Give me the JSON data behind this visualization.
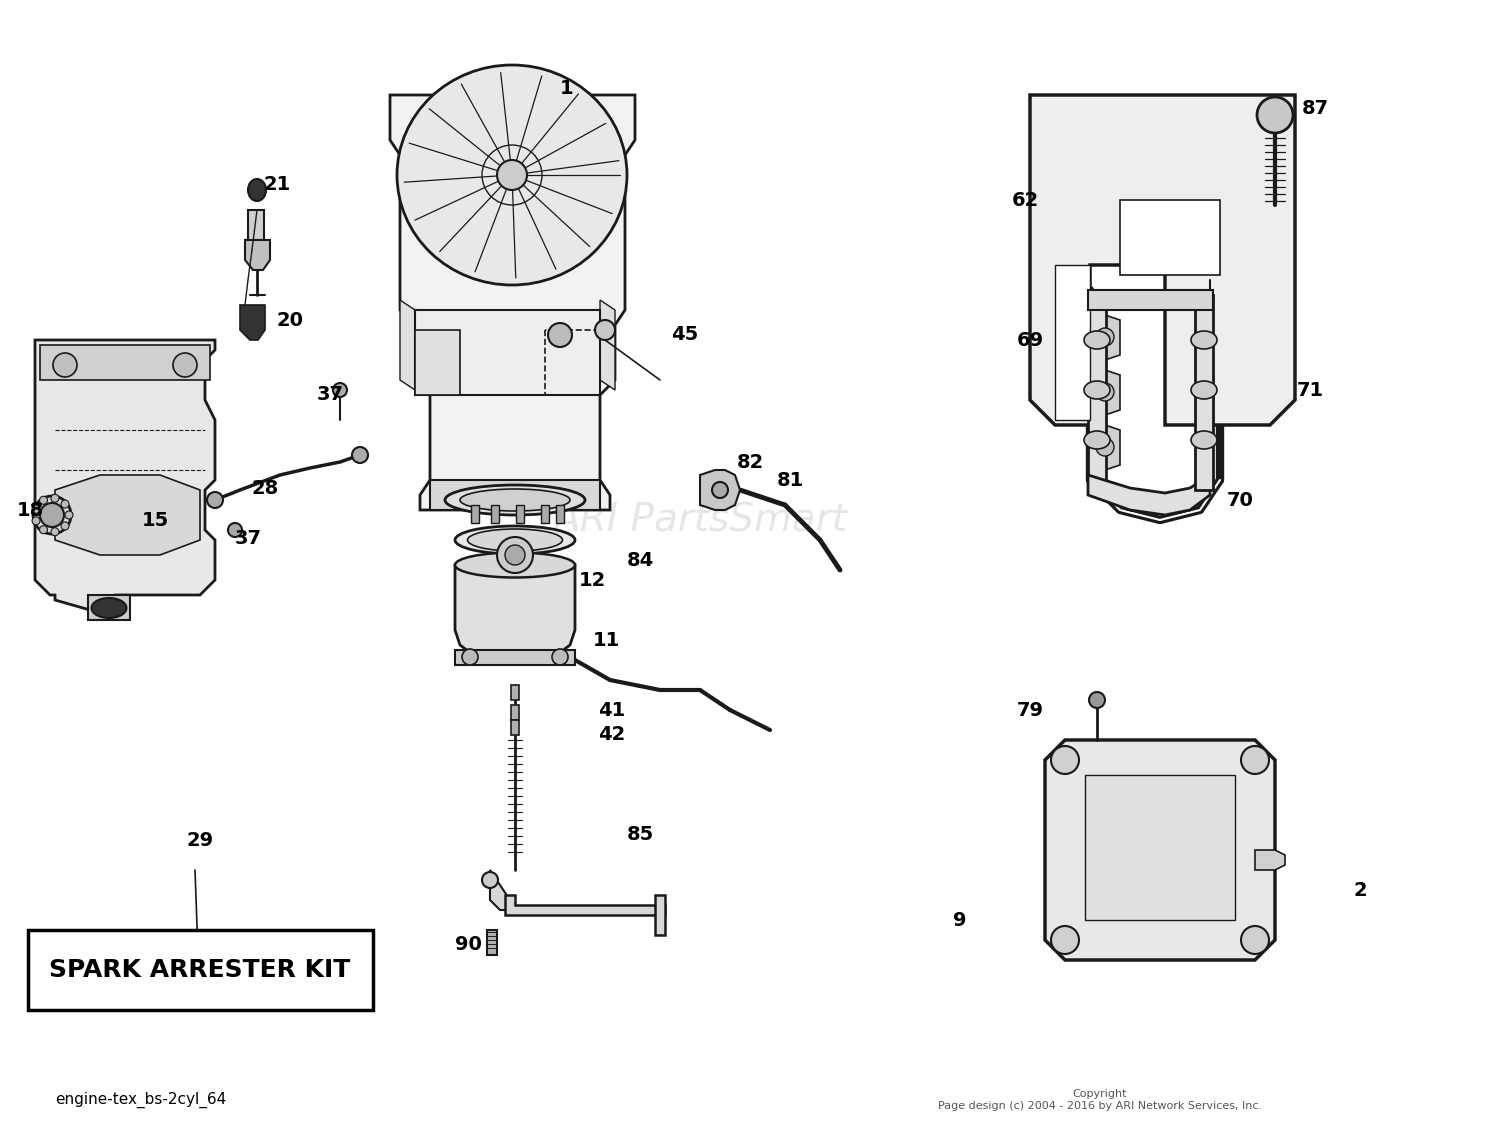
{
  "bg_color": "#ffffff",
  "line_color": "#1a1a1a",
  "watermark": "ARI PartsSmart",
  "footer_left": "engine-tex_bs-2cyl_64",
  "footer_right": "Copyright\nPage design (c) 2004 - 2016 by ARI Network Services, Inc.",
  "spark_box_text": "SPARK ARRESTER KIT",
  "figsize": [
    15.0,
    11.23
  ],
  "dpi": 100,
  "xlim": [
    0,
    1500
  ],
  "ylim": [
    0,
    1123
  ]
}
